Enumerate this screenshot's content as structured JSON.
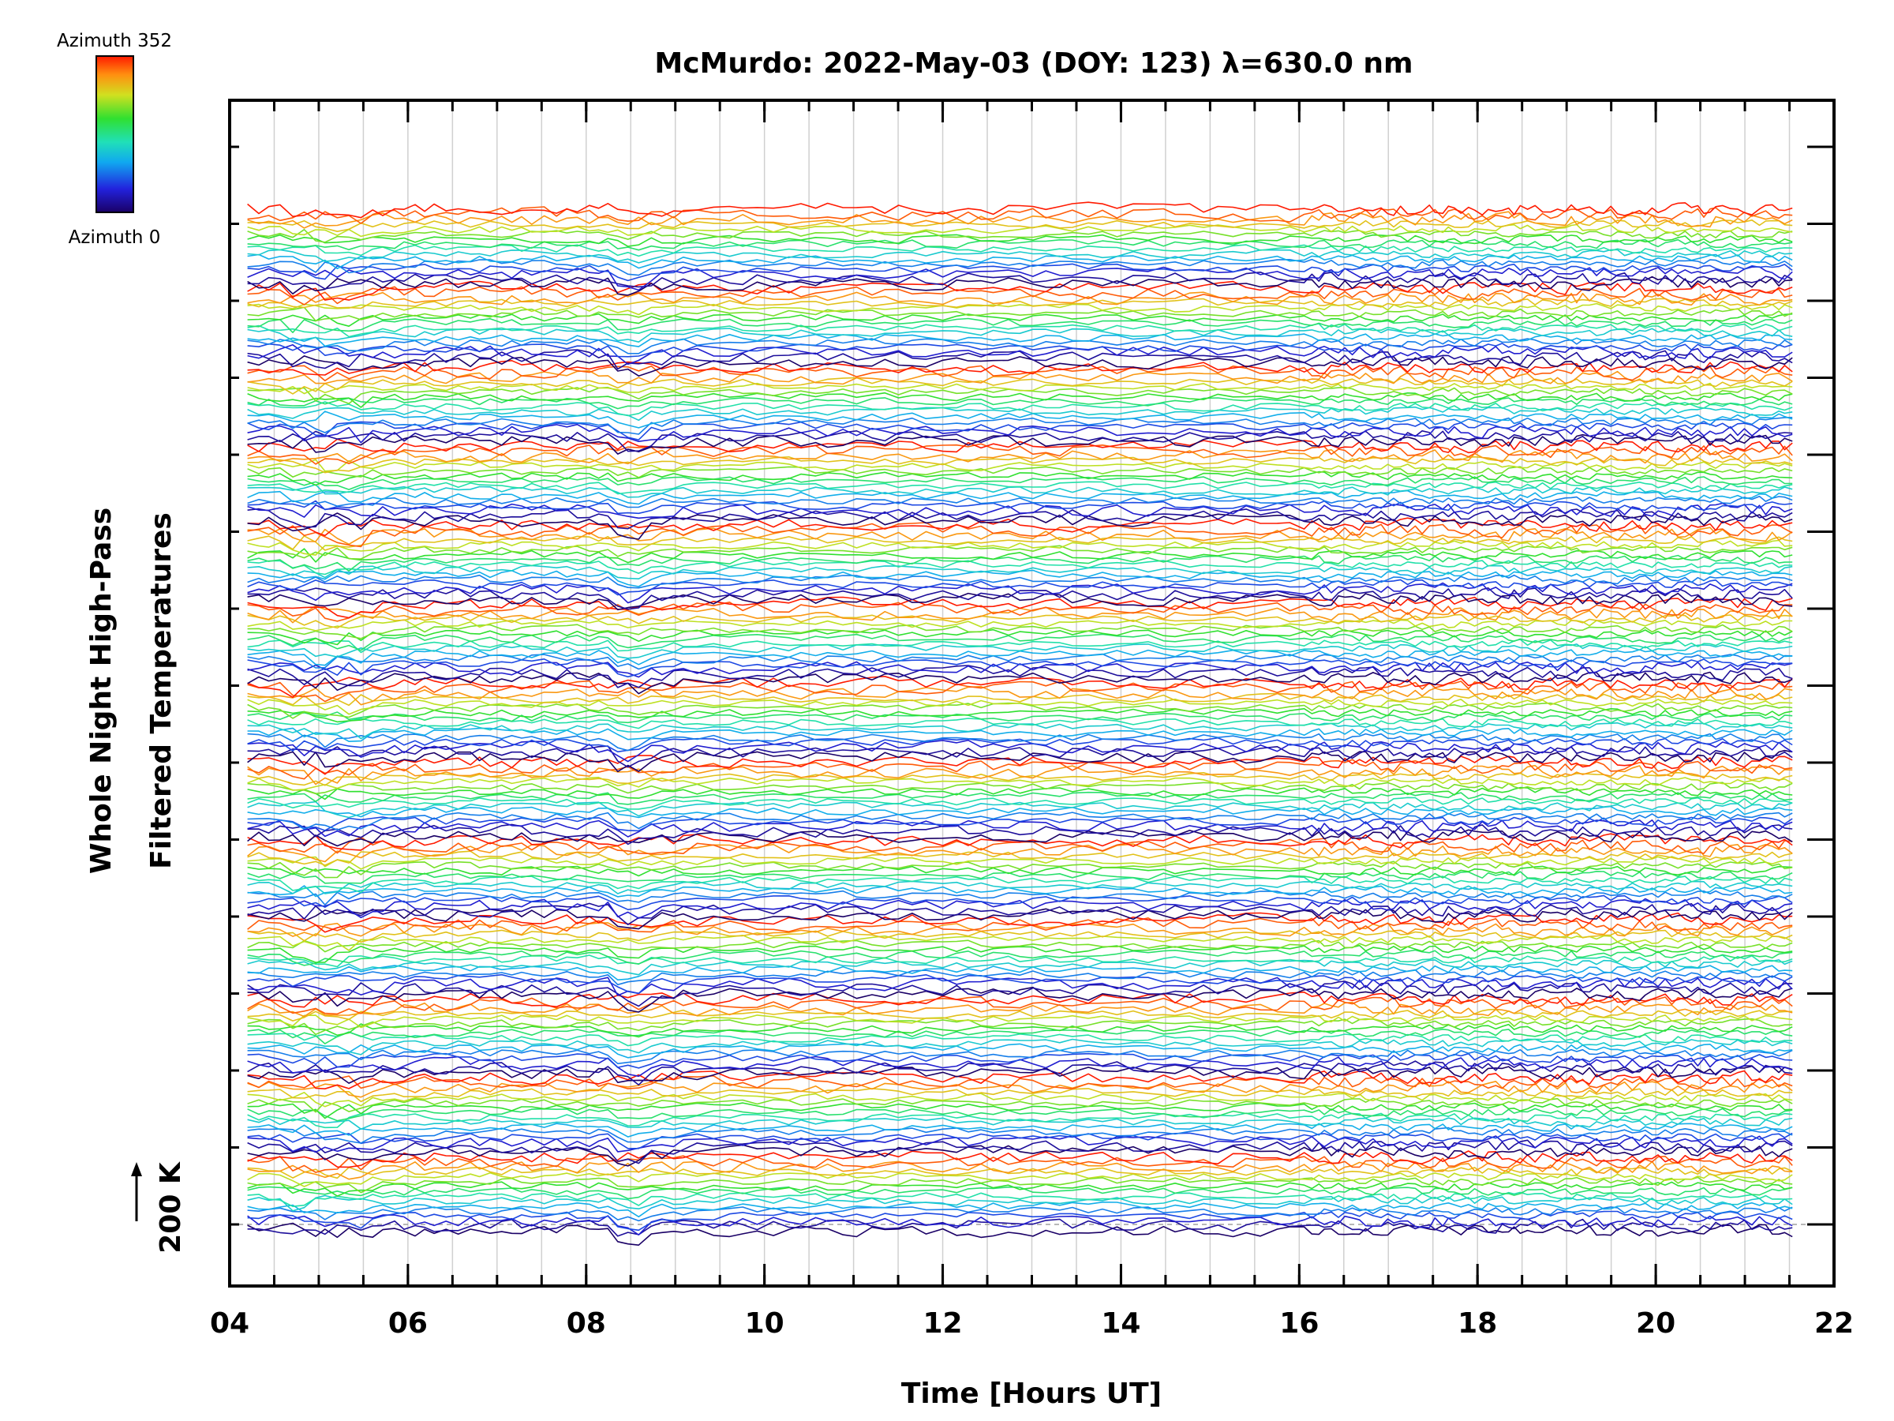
{
  "chart_data": {
    "type": "line",
    "title": "McMurdo: 2022-May-03 (DOY: 123) λ=630.0 nm",
    "xlabel": "Time [Hours UT]",
    "ylabel_line1": "Whole Night High-Pass",
    "ylabel_line2": "Filtered Temperatures",
    "scale_label": "200 K",
    "xlim": [
      4,
      22
    ],
    "x_ticks": [
      "04",
      "06",
      "08",
      "10",
      "12",
      "14",
      "16",
      "18",
      "20",
      "22"
    ],
    "x_tick_values": [
      4,
      6,
      8,
      10,
      12,
      14,
      16,
      18,
      20,
      22
    ],
    "data_time_range": [
      4.2,
      21.6
    ],
    "trace_groups": 13,
    "traces_per_group": 16,
    "colorbar": {
      "top_label": "Azimuth 352",
      "bottom_label": "Azimuth 0",
      "min": 0,
      "max": 352,
      "colormap": "rainbow"
    },
    "grid": true,
    "colors": {
      "grid": "#d0d0d0",
      "axis": "#000000",
      "reference_line": "#a0a0a0"
    }
  }
}
